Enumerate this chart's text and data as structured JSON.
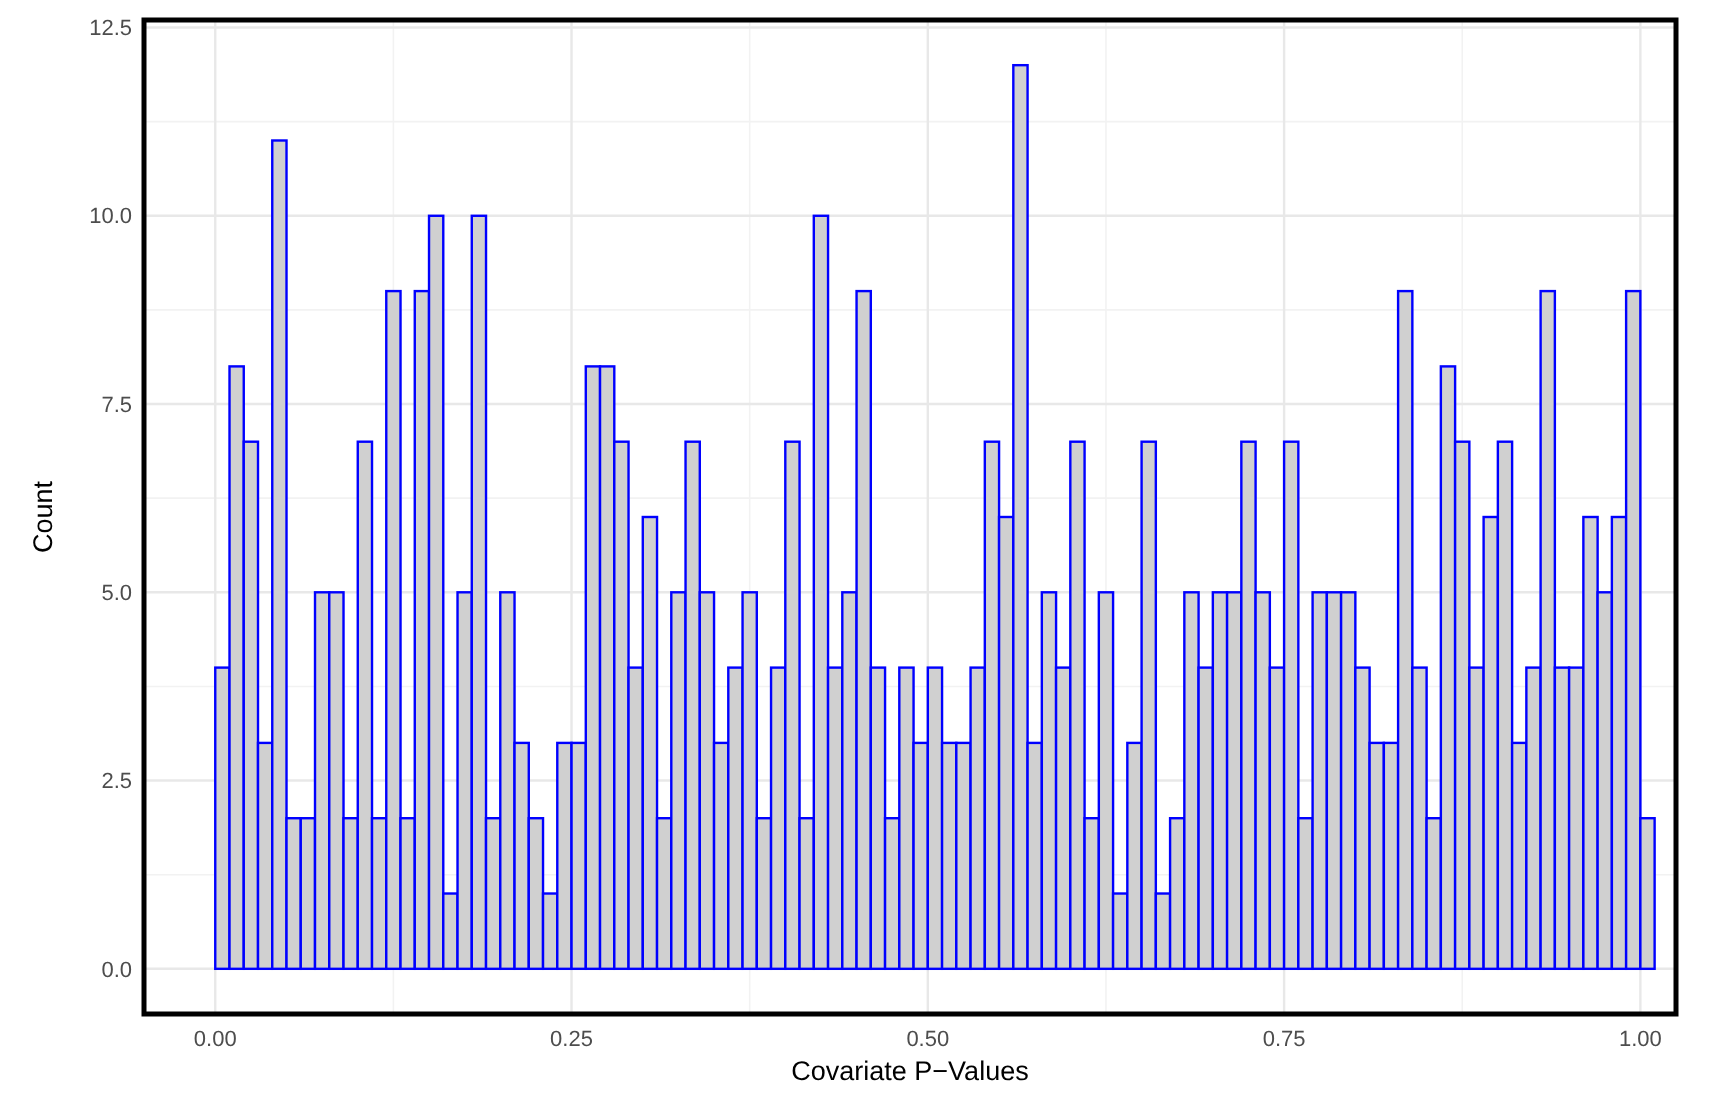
{
  "chart_data": {
    "type": "histogram",
    "xlabel": "Covariate P−Values",
    "ylabel": "Count",
    "bins": [
      0,
      0.01,
      0.02,
      0.03,
      0.04,
      0.05,
      0.06,
      0.07,
      0.08,
      0.09,
      0.1,
      0.11,
      0.12,
      0.13,
      0.14,
      0.15,
      0.16,
      0.17,
      0.18,
      0.19,
      0.2,
      0.21,
      0.22,
      0.23,
      0.24,
      0.25,
      0.26,
      0.27,
      0.28,
      0.29,
      0.3,
      0.31,
      0.32,
      0.33,
      0.34,
      0.35,
      0.36,
      0.37,
      0.38,
      0.39,
      0.4,
      0.41,
      0.42,
      0.43,
      0.44,
      0.45,
      0.46,
      0.47,
      0.48,
      0.49,
      0.5,
      0.51,
      0.52,
      0.53,
      0.54,
      0.55,
      0.56,
      0.57,
      0.58,
      0.59,
      0.6,
      0.61,
      0.62,
      0.63,
      0.64,
      0.65,
      0.66,
      0.67,
      0.68,
      0.69,
      0.7,
      0.71,
      0.72,
      0.73,
      0.74,
      0.75,
      0.76,
      0.77,
      0.78,
      0.79,
      0.8,
      0.81,
      0.82,
      0.83,
      0.84,
      0.85,
      0.86,
      0.87,
      0.88,
      0.89,
      0.9,
      0.91,
      0.92,
      0.93,
      0.94,
      0.95,
      0.96,
      0.97,
      0.98,
      0.99,
      1,
      1.01
    ],
    "values": [
      4,
      8,
      7,
      3,
      11,
      2,
      2,
      5,
      5,
      2,
      7,
      2,
      9,
      2,
      9,
      10,
      1,
      5,
      10,
      2,
      5,
      3,
      2,
      1,
      3,
      3,
      8,
      8,
      7,
      4,
      6,
      2,
      5,
      7,
      5,
      3,
      4,
      5,
      2,
      4,
      7,
      2,
      10,
      4,
      5,
      9,
      4,
      2,
      4,
      3,
      4,
      3,
      3,
      4,
      7,
      6,
      12,
      3,
      5,
      4,
      7,
      2,
      5,
      1,
      3,
      7,
      1,
      2,
      5,
      4,
      5,
      5,
      7,
      5,
      4,
      7,
      2,
      5,
      5,
      5,
      4,
      3,
      3,
      9,
      4,
      2,
      8,
      7,
      4,
      6,
      7,
      3,
      4,
      9,
      4,
      4,
      6,
      5,
      6,
      9,
      2
    ],
    "color": "#0000ff",
    "xlim": [
      -0.05,
      1.025
    ],
    "xticks": [
      {
        "value": 0,
        "label": "0.00"
      },
      {
        "value": 0.25,
        "label": "0.25"
      },
      {
        "value": 0.5,
        "label": "0.50"
      },
      {
        "value": 0.75,
        "label": "0.75"
      },
      {
        "value": 1,
        "label": "1.00"
      }
    ],
    "ylim": [
      -0.6,
      12.6
    ],
    "yticks": [
      {
        "value": 0,
        "label": "0.0"
      },
      {
        "value": 2.5,
        "label": "2.5"
      },
      {
        "value": 5,
        "label": "5.0"
      },
      {
        "value": 7.5,
        "label": "7.5"
      },
      {
        "value": 10,
        "label": "10.0"
      },
      {
        "value": 12.5,
        "label": "12.5"
      }
    ],
    "grid": true
  }
}
